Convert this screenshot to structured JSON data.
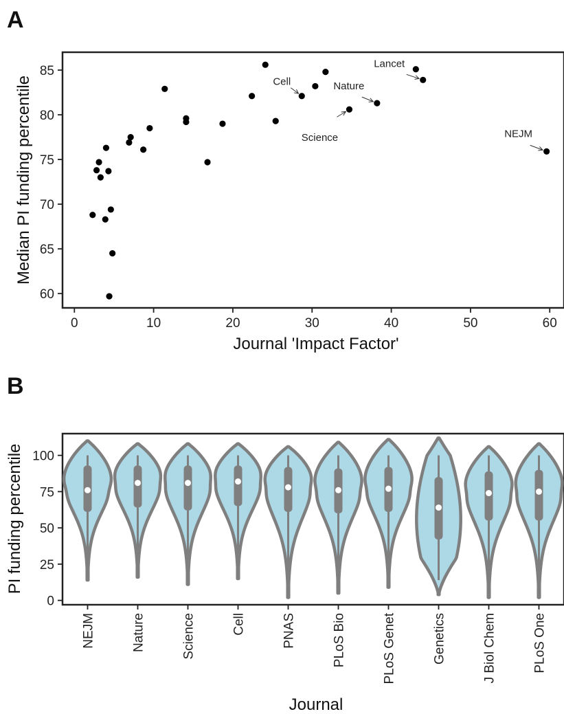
{
  "chart_data": [
    {
      "panel_label": "A",
      "type": "scatter",
      "xlabel": "Journal 'Impact Factor'",
      "ylabel": "Median PI funding percentile",
      "xlim": [
        -1.5,
        61.8
      ],
      "ylim": [
        58.4,
        87.0
      ],
      "xticks": [
        0,
        10,
        20,
        30,
        40,
        50,
        60
      ],
      "yticks": [
        60,
        65,
        70,
        75,
        80,
        85
      ],
      "grid": false,
      "points": [
        {
          "x": 2.3,
          "y": 68.8
        },
        {
          "x": 2.8,
          "y": 73.8
        },
        {
          "x": 3.1,
          "y": 74.7
        },
        {
          "x": 3.3,
          "y": 73.0
        },
        {
          "x": 3.9,
          "y": 68.3
        },
        {
          "x": 4.0,
          "y": 76.3
        },
        {
          "x": 4.3,
          "y": 73.7
        },
        {
          "x": 4.4,
          "y": 59.7
        },
        {
          "x": 4.6,
          "y": 69.4
        },
        {
          "x": 4.8,
          "y": 64.5
        },
        {
          "x": 6.9,
          "y": 76.9
        },
        {
          "x": 7.1,
          "y": 77.5
        },
        {
          "x": 8.7,
          "y": 76.1
        },
        {
          "x": 9.5,
          "y": 78.5
        },
        {
          "x": 11.4,
          "y": 82.9
        },
        {
          "x": 14.1,
          "y": 79.6
        },
        {
          "x": 14.1,
          "y": 79.2
        },
        {
          "x": 16.8,
          "y": 74.7
        },
        {
          "x": 18.7,
          "y": 79.0
        },
        {
          "x": 22.4,
          "y": 82.1
        },
        {
          "x": 24.1,
          "y": 85.6
        },
        {
          "x": 25.4,
          "y": 79.3
        },
        {
          "x": 28.7,
          "y": 82.1,
          "label": "Cell"
        },
        {
          "x": 30.4,
          "y": 83.2
        },
        {
          "x": 31.7,
          "y": 84.8
        },
        {
          "x": 34.7,
          "y": 80.6,
          "label": "Science"
        },
        {
          "x": 38.2,
          "y": 81.3,
          "label": "Nature"
        },
        {
          "x": 43.1,
          "y": 85.1
        },
        {
          "x": 44.0,
          "y": 83.9,
          "label": "Lancet"
        },
        {
          "x": 59.6,
          "y": 75.9,
          "label": "NEJM"
        }
      ]
    },
    {
      "panel_label": "B",
      "type": "violin",
      "xlabel": "Journal",
      "ylabel": "PI funding percentile",
      "ylim": [
        -3,
        115
      ],
      "yticks": [
        0,
        25,
        50,
        75,
        100
      ],
      "grid": false,
      "colors": {
        "fill": "#add8e6",
        "stroke": "#7f7f7f",
        "box": "#7f7f7f",
        "median": "#ffffff"
      },
      "violins": [
        {
          "category": "NEJM",
          "min": 14,
          "q1": 61,
          "median": 76,
          "q3": 93,
          "max": 110,
          "whisker_low": 31,
          "whisker_high": 100,
          "shape": "normal"
        },
        {
          "category": "Nature",
          "min": 16,
          "q1": 64,
          "median": 81,
          "q3": 93,
          "max": 108,
          "whisker_low": 28,
          "whisker_high": 100,
          "shape": "normal"
        },
        {
          "category": "Science",
          "min": 11,
          "q1": 62,
          "median": 81,
          "q3": 93,
          "max": 108,
          "whisker_low": 29,
          "whisker_high": 100,
          "shape": "normal"
        },
        {
          "category": "Cell",
          "min": 15,
          "q1": 65,
          "median": 82,
          "q3": 93,
          "max": 108,
          "whisker_low": 31,
          "whisker_high": 100,
          "shape": "normal"
        },
        {
          "category": "PNAS",
          "min": 2,
          "q1": 61,
          "median": 78,
          "q3": 92,
          "max": 106,
          "whisker_low": 15,
          "whisker_high": 100,
          "shape": "normal"
        },
        {
          "category": "PLoS Bio",
          "min": 5,
          "q1": 60,
          "median": 76,
          "q3": 91,
          "max": 109,
          "whisker_low": 17,
          "whisker_high": 100,
          "shape": "normal"
        },
        {
          "category": "PLoS Genet",
          "min": 9,
          "q1": 61,
          "median": 77,
          "q3": 92,
          "max": 111,
          "whisker_low": 20,
          "whisker_high": 100,
          "shape": "normal"
        },
        {
          "category": "Genetics",
          "min": 4,
          "q1": 42,
          "median": 64,
          "q3": 85,
          "max": 112,
          "whisker_low": 14,
          "whisker_high": 100,
          "shape": "wide"
        },
        {
          "category": "J Biol Chem",
          "min": 2,
          "q1": 55,
          "median": 74,
          "q3": 89,
          "max": 106,
          "whisker_low": 14,
          "whisker_high": 100,
          "shape": "normal"
        },
        {
          "category": "PLoS One",
          "min": 2,
          "q1": 55,
          "median": 75,
          "q3": 90,
          "max": 108,
          "whisker_low": 14,
          "whisker_high": 100,
          "shape": "normal"
        }
      ]
    }
  ]
}
